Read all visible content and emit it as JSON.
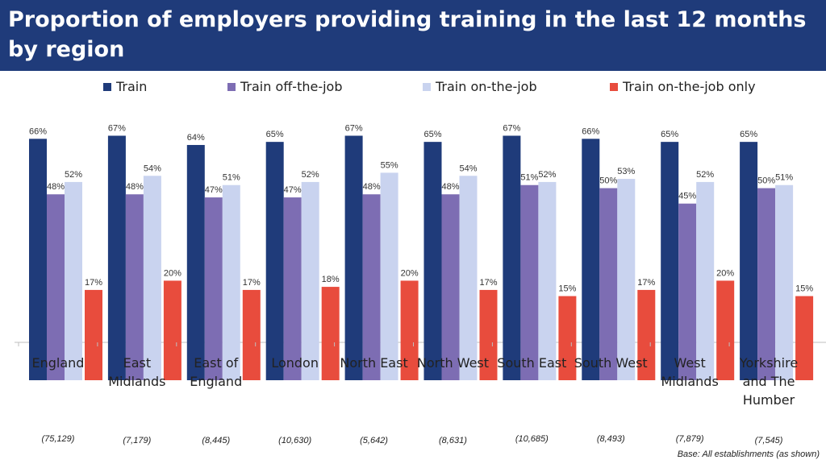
{
  "title": "Proportion of employers providing training in the last 12 months by region",
  "base_note": "Base: All establishments (as shown)",
  "chart_data": {
    "type": "bar",
    "title": "Proportion of employers providing training in the last 12 months by region",
    "ylim": [
      0,
      70
    ],
    "grid": false,
    "legend_position": "top",
    "categories": [
      "England",
      "East Midlands",
      "East of England",
      "London",
      "North East",
      "North West",
      "South East",
      "South West",
      "West Midlands",
      "Yorkshire and The Humber"
    ],
    "bases": [
      "(75,129)",
      "(7,179)",
      "(8,445)",
      "(10,630)",
      "(5,642)",
      "(8,631)",
      "(10,685)",
      "(8,493)",
      "(7,879)",
      "(7,545)"
    ],
    "series": [
      {
        "name": "Train",
        "color": "#1f3b7a",
        "values": [
          66,
          67,
          64,
          65,
          67,
          65,
          67,
          66,
          65,
          65
        ]
      },
      {
        "name": "Train off-the-job",
        "color": "#7d6db3",
        "values": [
          48,
          48,
          47,
          47,
          48,
          48,
          51,
          50,
          45,
          50
        ]
      },
      {
        "name": "Train on-the-job",
        "color": "#c9d3ef",
        "values": [
          52,
          54,
          51,
          52,
          55,
          54,
          52,
          53,
          52,
          51
        ]
      },
      {
        "name": "Train on-the-job only",
        "color": "#e84c3d",
        "values": [
          17,
          20,
          17,
          18,
          20,
          17,
          15,
          17,
          20,
          15
        ]
      }
    ]
  }
}
